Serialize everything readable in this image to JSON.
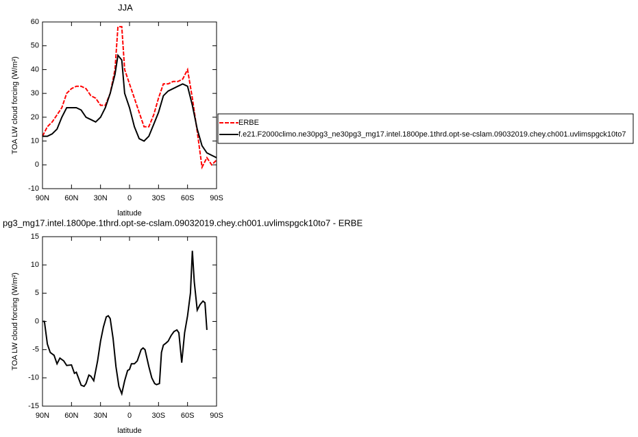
{
  "chart_data": [
    {
      "type": "line",
      "title": "JJA",
      "x_label": "latitude",
      "y_label": "TOA LW cloud forcing (W/m²)",
      "x": [
        90,
        85,
        80,
        75,
        70,
        65,
        60,
        55,
        50,
        45,
        40,
        35,
        30,
        25,
        20,
        15,
        12,
        8,
        5,
        0,
        -5,
        -10,
        -15,
        -20,
        -25,
        -30,
        -35,
        -40,
        -45,
        -50,
        -55,
        -60,
        -65,
        -70,
        -75,
        -80,
        -85,
        -90
      ],
      "series": [
        {
          "name": "ERBE",
          "color": "#ff0000",
          "style": "dashed",
          "values": [
            12,
            16,
            18,
            21,
            24,
            30,
            32,
            33,
            33,
            32,
            29,
            28,
            25,
            25,
            30,
            40,
            58,
            58,
            40,
            34,
            28,
            22,
            16,
            16,
            21,
            28,
            34,
            34,
            35,
            35,
            36,
            40,
            28,
            14,
            -1,
            3,
            0,
            2
          ]
        },
        {
          "name": "f.e21.F2000climo.ne30pg3_ne30pg3_mg17.intel.1800pe.1thrd.opt-se-cslam.09032019.chey.ch001.uvlimspgck10to7",
          "color": "#000000",
          "style": "solid",
          "values": [
            12,
            12,
            13,
            15,
            20,
            24,
            24,
            24,
            23,
            20,
            19,
            18,
            20,
            24,
            30,
            38,
            46,
            44,
            30,
            24,
            16,
            11,
            10,
            12,
            17,
            22,
            29,
            31,
            32,
            33,
            34,
            33,
            25,
            15,
            8,
            5,
            4,
            3
          ]
        }
      ],
      "xlim": [
        90,
        -90
      ],
      "xticks": [
        {
          "value": 90,
          "label": "90N"
        },
        {
          "value": 60,
          "label": "60N"
        },
        {
          "value": 30,
          "label": "30N"
        },
        0,
        {
          "value": -30,
          "label": "30S"
        },
        {
          "value": -60,
          "label": "60S"
        },
        {
          "value": -90,
          "label": "90S"
        }
      ],
      "ylim": [
        -10,
        60
      ],
      "yticks": [
        -10,
        0,
        10,
        20,
        30,
        40,
        50,
        60
      ],
      "legend": "right"
    },
    {
      "type": "line",
      "title": "pg3_mg17.intel.1800pe.1thrd.opt-se-cslam.09032019.chey.ch001.uvlimspgck10to7 - ERBE",
      "x_label": "latitude",
      "y_label": "TOA LW cloud forcing (W/m²)",
      "x": [
        90,
        88,
        85,
        82,
        78,
        75,
        72,
        68,
        65,
        60,
        57,
        55,
        50,
        47,
        45,
        42,
        40,
        37,
        33,
        30,
        27,
        24,
        22,
        20,
        17,
        14,
        11,
        8,
        5,
        2,
        0,
        -2,
        -5,
        -8,
        -12,
        -14,
        -16,
        -18,
        -20,
        -23,
        -26,
        -28,
        -31,
        -33,
        -35,
        -38,
        -40,
        -43,
        -46,
        -49,
        -51,
        -54,
        -57,
        -60,
        -63,
        -65,
        -67,
        -70,
        -73,
        -76,
        -78,
        -80
      ],
      "series": [
        {
          "color": "#000000",
          "style": "solid",
          "values": [
            0,
            0,
            -4,
            -5.5,
            -6,
            -7.5,
            -6.5,
            -7,
            -7.8,
            -7.7,
            -9.2,
            -9,
            -11.3,
            -11.5,
            -11,
            -9.5,
            -9.7,
            -10.5,
            -7,
            -3.5,
            -1,
            0.8,
            1,
            0.5,
            -3,
            -8,
            -11.5,
            -12.8,
            -10.5,
            -8.7,
            -8.5,
            -7.5,
            -7.5,
            -7,
            -5,
            -4.7,
            -5,
            -6.5,
            -8,
            -10,
            -11,
            -11.2,
            -11,
            -5.5,
            -4.2,
            -3.8,
            -3.5,
            -2.5,
            -1.8,
            -1.5,
            -2,
            -7.3,
            -2,
            1,
            5,
            12.5,
            7,
            2,
            3,
            3.6,
            3.3,
            -1.5
          ]
        }
      ],
      "xlim": [
        90,
        -90
      ],
      "xticks": [
        {
          "value": 90,
          "label": "90N"
        },
        {
          "value": 60,
          "label": "60N"
        },
        {
          "value": 30,
          "label": "30N"
        },
        0,
        {
          "value": -30,
          "label": "30S"
        },
        {
          "value": -60,
          "label": "60S"
        },
        {
          "value": -90,
          "label": "90S"
        }
      ],
      "ylim": [
        -15,
        15
      ],
      "yticks": [
        -15,
        -10,
        -5,
        0,
        5,
        10,
        15
      ]
    }
  ]
}
